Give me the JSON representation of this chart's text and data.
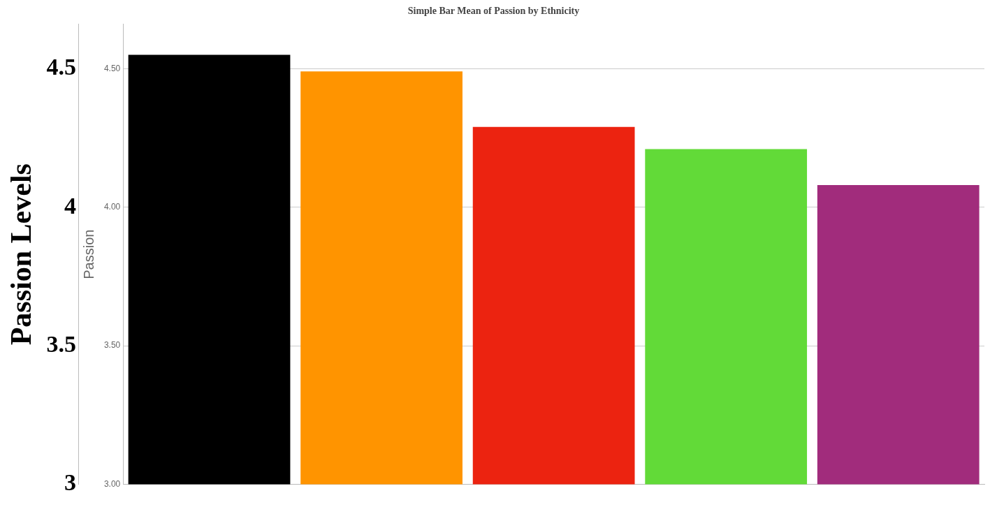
{
  "chart_data": {
    "type": "bar",
    "title": "Simple Bar Mean of Passion by Ethnicity",
    "ylabel": "Passion Levels",
    "y2label": "Passion",
    "categories": [
      null,
      null,
      null,
      null,
      null
    ],
    "values": [
      4.55,
      4.49,
      4.29,
      4.21,
      4.08
    ],
    "colors": [
      "#000000",
      "#ff9400",
      "#ec2310",
      "#62da38",
      "#a12c7c"
    ],
    "ylim": [
      3,
      4.66
    ],
    "yticks": [
      {
        "value": 3,
        "label": "3"
      },
      {
        "value": 3.5,
        "label": "3.5"
      },
      {
        "value": 4,
        "label": "4"
      },
      {
        "value": 4.5,
        "label": "4.5"
      }
    ],
    "y2lim": [
      3,
      4.66
    ],
    "y2ticks": [
      {
        "value": 3,
        "label": "3.00"
      },
      {
        "value": 3.5,
        "label": "3.50"
      },
      {
        "value": 4,
        "label": "4.00"
      },
      {
        "value": 4.5,
        "label": "4.50"
      }
    ],
    "grid": "y",
    "legend": false
  }
}
